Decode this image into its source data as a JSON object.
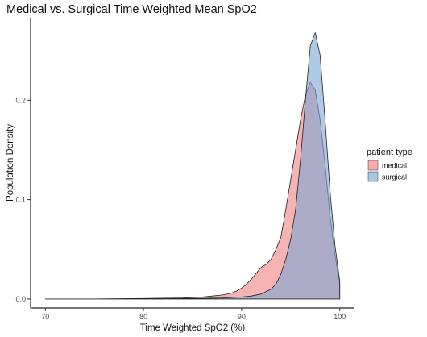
{
  "chart_data": {
    "type": "area",
    "title": "Medical vs. Surgical Time Weighted Mean SpO2",
    "xlabel": "Time Weighted SpO2 (%)",
    "ylabel": "Population Density",
    "xlim": [
      68.5,
      101.5
    ],
    "ylim": [
      -0.009,
      0.283
    ],
    "x_ticks": [
      70,
      80,
      90,
      100
    ],
    "x_tick_labels": [
      "70",
      "80",
      "90",
      "100"
    ],
    "y_ticks": [
      0.0,
      0.1,
      0.2
    ],
    "y_tick_labels": [
      "0.0",
      "0.1",
      "0.2"
    ],
    "grid": false,
    "legend": {
      "title": "patient type",
      "placement": "right",
      "entries": [
        "medical",
        "surgical"
      ]
    },
    "series": [
      {
        "name": "medical",
        "color": "#F08080",
        "x": [
          70,
          75,
          80,
          84,
          86,
          87,
          88,
          89,
          89.5,
          90,
          90.5,
          91,
          91.5,
          92,
          92.5,
          93,
          93.5,
          94,
          94.5,
          95,
          95.5,
          96,
          96.5,
          97,
          97.5,
          98,
          98.5,
          99,
          99.5,
          100
        ],
        "y": [
          0.0,
          0.0,
          0.0005,
          0.001,
          0.002,
          0.003,
          0.004,
          0.006,
          0.008,
          0.011,
          0.015,
          0.02,
          0.026,
          0.032,
          0.035,
          0.04,
          0.05,
          0.062,
          0.09,
          0.12,
          0.15,
          0.18,
          0.205,
          0.218,
          0.21,
          0.18,
          0.135,
          0.085,
          0.045,
          0.015
        ]
      },
      {
        "name": "surgical",
        "color": "#7BA7D6",
        "x": [
          70,
          80,
          85,
          88,
          90,
          91,
          92,
          93,
          93.5,
          94,
          94.5,
          95,
          95.5,
          96,
          96.5,
          97,
          97.5,
          98,
          98.5,
          99,
          99.5,
          100
        ],
        "y": [
          0.0,
          0.0,
          0.0005,
          0.001,
          0.002,
          0.003,
          0.005,
          0.01,
          0.015,
          0.025,
          0.04,
          0.06,
          0.09,
          0.14,
          0.2,
          0.255,
          0.268,
          0.245,
          0.18,
          0.11,
          0.055,
          0.018
        ]
      }
    ]
  }
}
